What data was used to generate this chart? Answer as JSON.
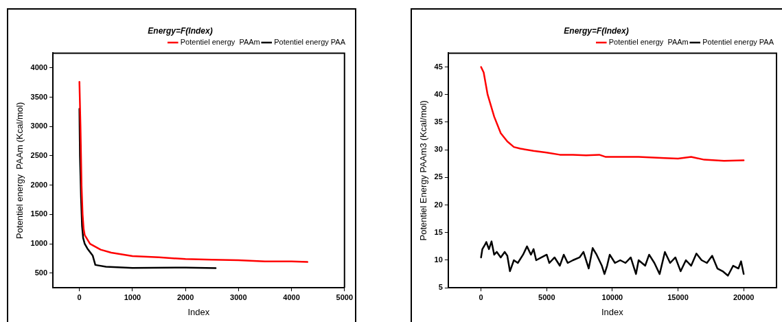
{
  "chart_data": [
    {
      "type": "line",
      "title": "Energy=F(Index)",
      "xlabel": "Index",
      "ylabel": "Potentiel energy  PAAm (Kcal/mol)",
      "legend": "top right",
      "marker": "none",
      "line_style": "solid",
      "xlim": [
        -500,
        5000
      ],
      "xticks": [
        0,
        1000,
        2000,
        3000,
        4000,
        5000
      ],
      "ylim": [
        250,
        4250
      ],
      "yticks": [
        500,
        1000,
        1500,
        2000,
        2500,
        3000,
        3500,
        4000
      ],
      "series": [
        {
          "name": "Potentiel energy  PAAm",
          "color": "#ff0000",
          "x": [
            0,
            20,
            40,
            60,
            80,
            100,
            200,
            400,
            600,
            1000,
            1500,
            2000,
            2500,
            3000,
            3500,
            4000,
            4300
          ],
          "values": [
            3760,
            3000,
            2000,
            1500,
            1250,
            1150,
            1000,
            900,
            850,
            790,
            770,
            740,
            730,
            720,
            700,
            700,
            690
          ]
        },
        {
          "name": "Potentiel energy PAA",
          "color": "#000000",
          "x": [
            0,
            10,
            30,
            50,
            70,
            100,
            150,
            250,
            300,
            500,
            1000,
            2000,
            2570
          ],
          "values": [
            3300,
            2500,
            1800,
            1300,
            1100,
            1000,
            920,
            800,
            640,
            610,
            590,
            595,
            585
          ]
        }
      ]
    },
    {
      "type": "line",
      "title": "Energy=F(Index)",
      "xlabel": "Index",
      "ylabel": "Potentiel Energy PAAm3 (Kcal/mol)",
      "legend": "top right",
      "marker": "none",
      "line_style": "solid",
      "xlim": [
        -2500,
        22500
      ],
      "xticks": [
        0,
        5000,
        10000,
        15000,
        20000
      ],
      "ylim": [
        5,
        47.5
      ],
      "yticks": [
        5,
        10,
        15,
        20,
        25,
        30,
        35,
        40,
        45
      ],
      "series": [
        {
          "name": "Potentiel energy  PAAm",
          "color": "#ff0000",
          "x": [
            0,
            200,
            500,
            1000,
            1500,
            2000,
            2500,
            3000,
            4000,
            5000,
            6000,
            7000,
            8000,
            9000,
            9500,
            11000,
            12000,
            14000,
            15000,
            16000,
            17000,
            18500,
            20000
          ],
          "values": [
            45,
            44,
            40,
            36,
            33,
            31.5,
            30.5,
            30.2,
            29.8,
            29.5,
            29.1,
            29.1,
            29.0,
            29.1,
            28.7,
            28.7,
            28.7,
            28.5,
            28.4,
            28.7,
            28.2,
            28.0,
            28.1
          ]
        },
        {
          "name": "Potentiel energy PAA",
          "color": "#000000",
          "x": [
            0,
            100,
            300,
            400,
            600,
            800,
            1000,
            1200,
            1500,
            1800,
            2000,
            2200,
            2500,
            2800,
            3200,
            3500,
            3800,
            4000,
            4200,
            4600,
            5000,
            5200,
            5600,
            6000,
            6300,
            6600,
            7000,
            7500,
            7800,
            8200,
            8500,
            8800,
            9200,
            9400,
            9600,
            9800,
            10200,
            10600,
            11000,
            11400,
            11600,
            11800,
            12000,
            12500,
            12800,
            13200,
            13600,
            14000,
            14400,
            14800,
            15200,
            15600,
            16000,
            16400,
            16800,
            17200,
            17600,
            18000,
            18400,
            18800,
            19200,
            19600,
            19800,
            20000
          ],
          "values": [
            10.5,
            12,
            12.8,
            13.3,
            12,
            13.4,
            11,
            11.5,
            10.5,
            11.5,
            10.8,
            8,
            10,
            9.5,
            11,
            12.5,
            11,
            12,
            10,
            10.5,
            11,
            9.5,
            10.5,
            9,
            11,
            9.5,
            10,
            10.5,
            11.5,
            8.5,
            12.2,
            11,
            9,
            7.5,
            9,
            11,
            9.5,
            10,
            9.5,
            10.5,
            9,
            7.5,
            10,
            9,
            11,
            9.5,
            7.5,
            11.5,
            9.5,
            10.5,
            8,
            10,
            9,
            11.2,
            10,
            9.5,
            10.8,
            8.5,
            8,
            7.2,
            9,
            8.5,
            9.8,
            7.5
          ]
        }
      ]
    }
  ]
}
